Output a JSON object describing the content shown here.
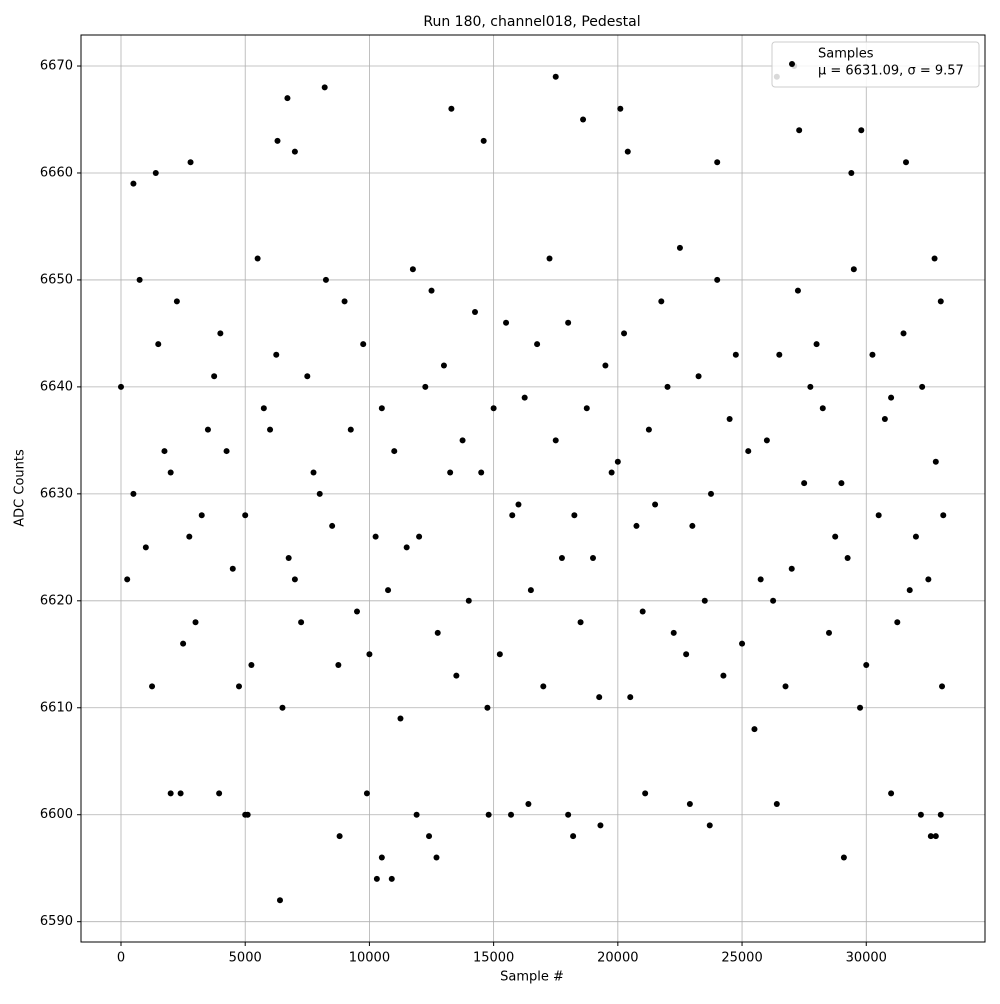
{
  "chart_data": {
    "type": "scatter",
    "title": "Run 180, channel018, Pedestal",
    "x_label": "Sample #",
    "y_label": "ADC Counts",
    "annotation": "μ = 6631.09, σ = 9.57",
    "xlim": [
      -1610,
      34780
    ],
    "ylim": [
      6588.1,
      6672.9
    ],
    "xticks": [
      0,
      5000,
      10000,
      15000,
      20000,
      25000,
      30000
    ],
    "yticks": [
      6590,
      6600,
      6610,
      6620,
      6630,
      6640,
      6650,
      6660,
      6670
    ],
    "grid": true,
    "legend": "upper right",
    "series": [
      {
        "name": "Samples",
        "color": "#000000",
        "x": [
          0,
          1000,
          2000,
          3000,
          4000,
          5000,
          6000,
          7000,
          8000,
          9000,
          10000,
          11000,
          12000,
          13000,
          14000,
          15000,
          16000,
          17000,
          18000,
          19000,
          20000,
          21000,
          22000,
          23000,
          24000,
          25000,
          26000,
          27000,
          28000,
          29000,
          30000,
          31000,
          32000,
          33000,
          500,
          1500,
          2500,
          3500,
          4500,
          5500,
          6500,
          7500,
          8500,
          9500,
          10500,
          11500,
          12500,
          13500,
          14500,
          15500,
          16500,
          17500,
          18500,
          19500,
          20500,
          21500,
          22500,
          23500,
          24500,
          25500,
          26500,
          27500,
          28500,
          29500,
          30500,
          31500,
          32500,
          32800,
          250,
          1250,
          2250,
          3250,
          4250,
          5250,
          6250,
          7250,
          8250,
          9250,
          10250,
          11250,
          12250,
          13250,
          14250,
          15250,
          16250,
          17250,
          18250,
          19250,
          20250,
          21250,
          22250,
          23250,
          24250,
          25250,
          26250,
          27250,
          28250,
          29250,
          30250,
          31250,
          32250,
          33050,
          750,
          1750,
          2750,
          3750,
          4750,
          5750,
          6750,
          7750,
          8750,
          9750,
          10750,
          11750,
          12750,
          13750,
          14750,
          15750,
          16750,
          17750,
          18750,
          19750,
          20750,
          21750,
          22750,
          23750,
          24750,
          25750,
          26750,
          27750,
          28750,
          29750,
          30750,
          31750,
          32750,
          33100,
          6400,
          10300,
          10900,
          10500,
          12700,
          29100,
          8800,
          12400,
          18200,
          32600,
          32800,
          5000,
          5100,
          11900,
          14800,
          15700,
          18000,
          32200,
          33000,
          19300,
          23700,
          16400,
          22900,
          26400,
          2000,
          2400,
          3950,
          9900,
          31000,
          21100,
          17500,
          26400,
          6700,
          8200,
          13300,
          20100,
          18600,
          27300,
          29800,
          6300,
          14600,
          500,
          7000,
          27100,
          29400,
          31600,
          20400,
          24000,
          2800,
          1400
        ],
        "values": [
          6640,
          6625,
          6632,
          6618,
          6645,
          6628,
          6636,
          6622,
          6630,
          6648,
          6615,
          6634,
          6626,
          6642,
          6620,
          6638,
          6629,
          6612,
          6646,
          6624,
          6633,
          6619,
          6640,
          6627,
          6650,
          6616,
          6635,
          6623,
          6644,
          6631,
          6614,
          6639,
          6626,
          6648,
          6630,
          6644,
          6616,
          6636,
          6623,
          6652,
          6610,
          6641,
          6627,
          6619,
          6638,
          6625,
          6649,
          6613,
          6632,
          6646,
          6621,
          6635,
          6618,
          6642,
          6611,
          6629,
          6653,
          6620,
          6637,
          6608,
          6643,
          6631,
          6617,
          6651,
          6628,
          6645,
          6622,
          6633,
          6622,
          6612,
          6648,
          6628,
          6634,
          6614,
          6643,
          6618,
          6650,
          6636,
          6626,
          6609,
          6640,
          6632,
          6647,
          6615,
          6639,
          6652,
          6628,
          6611,
          6645,
          6636,
          6617,
          6641,
          6613,
          6634,
          6620,
          6649,
          6638,
          6624,
          6643,
          6618,
          6640,
          6612,
          6650,
          6634,
          6626,
          6641,
          6612,
          6638,
          6624,
          6632,
          6614,
          6644,
          6621,
          6651,
          6617,
          6635,
          6610,
          6628,
          6644,
          6624,
          6638,
          6632,
          6627,
          6648,
          6615,
          6630,
          6643,
          6622,
          6612,
          6640,
          6626,
          6610,
          6637,
          6621,
          6652,
          6628,
          6592,
          6594,
          6594,
          6596,
          6596,
          6596,
          6598,
          6598,
          6598,
          6598,
          6598,
          6600,
          6600,
          6600,
          6600,
          6600,
          6600,
          6600,
          6600,
          6599,
          6599,
          6601,
          6601,
          6601,
          6602,
          6602,
          6602,
          6602,
          6602,
          6602,
          6669,
          6669,
          6667,
          6668,
          6666,
          6666,
          6665,
          6664,
          6664,
          6663,
          6663,
          6659,
          6662,
          6670,
          6660,
          6661,
          6662,
          6661,
          6661,
          6660
        ]
      }
    ]
  }
}
